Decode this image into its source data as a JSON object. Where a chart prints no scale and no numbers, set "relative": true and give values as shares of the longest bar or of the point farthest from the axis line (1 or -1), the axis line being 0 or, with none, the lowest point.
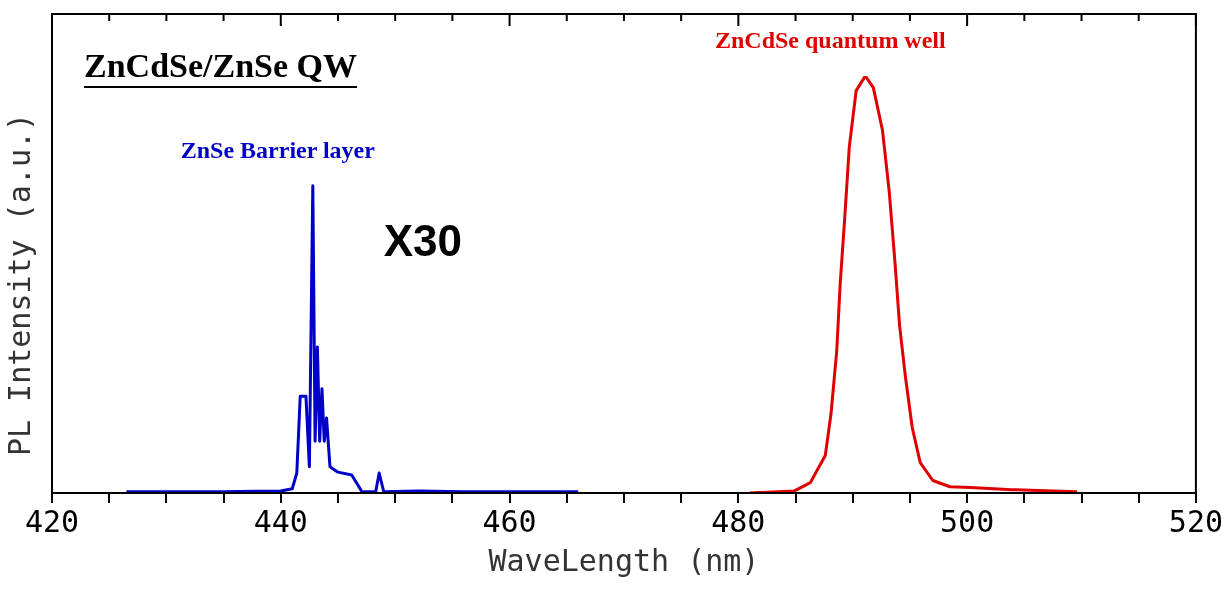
{
  "chart_data": {
    "type": "line",
    "title": "ZnCdSe/ZnSe QW",
    "xlabel": "WaveLength (nm)",
    "ylabel": "PL Intensity (a.u.)",
    "relative": true,
    "xlim": [
      420,
      520
    ],
    "xticks": [
      420,
      {
        "value": 425,
        "label": null
      },
      {
        "value": 430,
        "label": null
      },
      {
        "value": 435,
        "label": null
      },
      440,
      {
        "value": 445,
        "label": null
      },
      {
        "value": 450,
        "label": null
      },
      {
        "value": 455,
        "label": null
      },
      460,
      {
        "value": 465,
        "label": null
      },
      {
        "value": 470,
        "label": null
      },
      {
        "value": 475,
        "label": null
      },
      480,
      {
        "value": 485,
        "label": null
      },
      {
        "value": 490,
        "label": null
      },
      {
        "value": 495,
        "label": null
      },
      500,
      {
        "value": 505,
        "label": null
      },
      {
        "value": 510,
        "label": null
      },
      {
        "value": 515,
        "label": null
      },
      520
    ],
    "series": [
      {
        "name": "ZnSe Barrier layer",
        "color": "#0000c8",
        "x": [
          426.5,
          430,
          435,
          440,
          441.0,
          441.4,
          441.7,
          442.2,
          442.5,
          442.8,
          443.0,
          443.2,
          443.4,
          443.6,
          443.8,
          444.0,
          444.3,
          445.0,
          446.2,
          447.1,
          448.3,
          448.6,
          449.0,
          452,
          456,
          460,
          466
        ],
        "values": [
          0.003,
          0.003,
          0.003,
          0.005,
          0.01,
          0.048,
          0.232,
          0.232,
          0.063,
          0.737,
          0.124,
          0.35,
          0.124,
          0.25,
          0.124,
          0.18,
          0.063,
          0.05,
          0.043,
          0.003,
          0.003,
          0.048,
          0.003,
          0.005,
          0.003,
          0.003,
          0.003
        ]
      },
      {
        "name": "ZnCdSe quantum well",
        "color": "#e00000",
        "x": [
          481,
          484.9,
          486.3,
          487.6,
          488.1,
          488.6,
          488.9,
          489.3,
          489.7,
          490.3,
          491.1,
          491.8,
          492.6,
          493.2,
          493.7,
          494.1,
          494.6,
          495.2,
          495.9,
          497.0,
          498.5,
          500.3,
          503.9,
          509.6
        ],
        "values": [
          0.0,
          0.005,
          0.025,
          0.09,
          0.19,
          0.34,
          0.5,
          0.66,
          0.83,
          0.965,
          1,
          0.972,
          0.87,
          0.72,
          0.55,
          0.4,
          0.28,
          0.157,
          0.073,
          0.03,
          0.015,
          0.013,
          0.008,
          0.003
        ]
      }
    ],
    "annotations": [
      "X30"
    ]
  }
}
